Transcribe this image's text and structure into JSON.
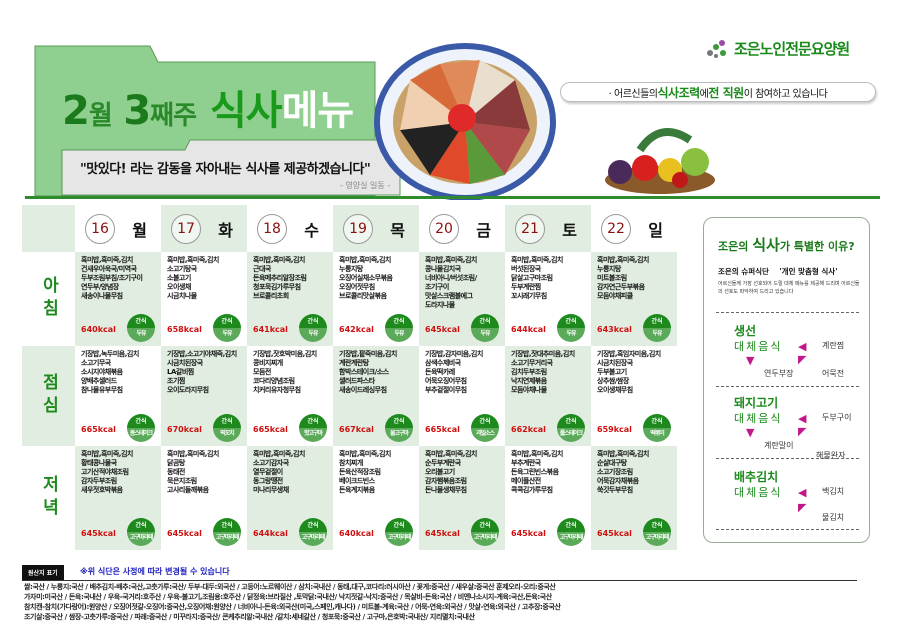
{
  "header": {
    "title_month_num": "2",
    "title_month_unit": "월",
    "title_week_num": "3",
    "title_week_unit": "째주",
    "title_meal": "식사",
    "title_menu": "메뉴",
    "quote": "\"맛있다! 라는 감동을 자아내는 식사를 제공하겠습니다\"",
    "signature": "- 영양실 일동 -",
    "logo_text": "조은노인전문요양원",
    "slogan_pre": "· 어르신들의 ",
    "slogan_b1": "식사조력",
    "slogan_mid": "에 ",
    "slogan_b2": "전 직원",
    "slogan_post": "이 참여하고 있습니다"
  },
  "colors": {
    "accent": "#1e8a1e",
    "light_green": "#e0ede0",
    "kcal": "#d01010",
    "arrow": "#c0188a"
  },
  "days": [
    {
      "date": "16",
      "dow": "월"
    },
    {
      "date": "17",
      "dow": "화"
    },
    {
      "date": "18",
      "dow": "수"
    },
    {
      "date": "19",
      "dow": "목"
    },
    {
      "date": "20",
      "dow": "금"
    },
    {
      "date": "21",
      "dow": "토"
    },
    {
      "date": "22",
      "dow": "일"
    }
  ],
  "meals": [
    {
      "label": "아침",
      "cells": [
        {
          "items": [
            "흑미밥,흑미죽,김치",
            "건새우아욱국/미역국",
            "두부조림부침/조기구이",
            "연두부/양념장",
            "새송이나물무침"
          ],
          "kcal": "640kcal",
          "snack_label": "간식",
          "snack": "두유"
        },
        {
          "items": [
            "흑미밥,흑미죽,김치",
            "소고기탕국",
            "소불고기",
            "오이생채",
            "시금치나물"
          ],
          "kcal": "658kcal",
          "snack_label": "간식",
          "snack": "두유"
        },
        {
          "items": [
            "흑미밥,흑미죽,김치",
            "근대국",
            "돈육메추리알장조림",
            "청포묵김가루무침",
            "브로콜리초회"
          ],
          "kcal": "641kcal",
          "snack_label": "간식",
          "snack": "두유"
        },
        {
          "items": [
            "흑미밥,흑미죽,김치",
            "누룽지탕",
            "오징어실채소무볶음",
            "오징어젓무침",
            "브로콜리맛살볶음"
          ],
          "kcal": "642kcal",
          "snack_label": "간식",
          "snack": "두유"
        },
        {
          "items": [
            "흑미밥,흑미죽,김치",
            "콩나물김치국",
            "너비아니/버섯조림/",
            "조기구이",
            "맛살스크램블에그",
            "도라지나물"
          ],
          "kcal": "645kcal",
          "snack_label": "간식",
          "snack": "두유"
        },
        {
          "items": [
            "흑미밥,흑미죽,김치",
            "버섯된장국",
            "닭살고구마조림",
            "두부계란찜",
            "꼬시래기무침"
          ],
          "kcal": "644kcal",
          "snack_label": "간식",
          "snack": "두유"
        },
        {
          "items": [
            "흑미밥,흑미죽,김치",
            "누룽지탕",
            "미트볼조림",
            "감자연근두부볶음",
            "모듬야채피클"
          ],
          "kcal": "643kcal",
          "snack_label": "간식",
          "snack": "두유"
        }
      ]
    },
    {
      "label": "점심",
      "cells": [
        {
          "items": [
            "기장밥,녹두미음,김치",
            "소고기무국",
            "소시지야채볶음",
            "양배추샐러드",
            "참나물유부무침"
          ],
          "kcal": "665kcal",
          "snack_label": "간식",
          "snack": "콩스테이크"
        },
        {
          "items": [
            "기장밥,소고기야채죽,김치",
            "시금치된장국",
            "LA갈비찜",
            "조기찜",
            "오이도라지무침"
          ],
          "kcal": "670kcal",
          "snack_label": "간식",
          "snack": "떡꼬치"
        },
        {
          "items": [
            "기장밥,잣호박미음,김치",
            "콩비지찌개",
            "모듬전",
            "코다리양념조림",
            "치커리유자청무침"
          ],
          "kcal": "665kcal",
          "snack_label": "간식",
          "snack": "핫고구마"
        },
        {
          "items": [
            "기장밥,팥죽미음,김치",
            "계란계란탕",
            "함박스테이크/소스",
            "샐러드파스타",
            "새송이드레싱무침"
          ],
          "kcal": "667kcal",
          "snack_label": "간식",
          "snack": "물고구마"
        },
        {
          "items": [
            "기장밥,감자미음,김치",
            "삼색수제비국",
            "돈육떡카레",
            "어묵오징어무침",
            "부추겉절이무침"
          ],
          "kcal": "665kcal",
          "snack_label": "간식",
          "snack": "과일소스"
        },
        {
          "items": [
            "기장밥,잣대추미음,김치",
            "소고기무거리국",
            "김치두부조림",
            "낙지연제볶음",
            "모듬야채나물"
          ],
          "kcal": "662kcal",
          "snack_label": "간식",
          "snack": "롤스테이크"
        },
        {
          "items": [
            "기장밥,흑임자미음,김치",
            "시금치된장국",
            "두부불고기",
            "상추쌈/쌈장",
            "오이생채무침"
          ],
          "kcal": "659kcal",
          "snack_label": "간식",
          "snack": "떡볶이"
        }
      ]
    },
    {
      "label": "저녁",
      "cells": [
        {
          "items": [
            "흑미밥,흑미죽,김치",
            "황태콩나물국",
            "고기산적야채조림",
            "감자두부조림",
            "새우젓호박볶음"
          ],
          "kcal": "645kcal",
          "snack_label": "간식",
          "snack": "고구마라떼"
        },
        {
          "items": [
            "흑미밥,흑미죽,김치",
            "닭곰탕",
            "동태전",
            "묵은지조림",
            "고사리들깨볶음"
          ],
          "kcal": "645kcal",
          "snack_label": "간식",
          "snack": "고구마라떼"
        },
        {
          "items": [
            "흑미밥,흑미죽,김치",
            "소고기감자국",
            "열무겉절이",
            "동그랑땡전",
            "미나리무생채"
          ],
          "kcal": "644kcal",
          "snack_label": "간식",
          "snack": "고구마라떼"
        },
        {
          "items": [
            "흑미밥,흑미죽,김치",
            "참치찌개",
            "돈육산적장조림",
            "베이크드빈스",
            "돈육계지볶음"
          ],
          "kcal": "640kcal",
          "snack_label": "간식",
          "snack": "고구마라떼"
        },
        {
          "items": [
            "흑미밥,흑미죽,김치",
            "순두부계란국",
            "오리불고기",
            "감자햄볶음조림",
            "돈나물생채무침"
          ],
          "kcal": "645kcal",
          "snack_label": "간식",
          "snack": "고구마라떼"
        },
        {
          "items": [
            "흑미밥,흑미죽,김치",
            "부추계란국",
            "돈육그린빈스볶음",
            "메이플산전",
            "콕콕김가루무침"
          ],
          "kcal": "645kcal",
          "snack_label": "간식",
          "snack": "고구마라떼"
        },
        {
          "items": [
            "흑미밥,흑미죽,김치",
            "순살대구탕",
            "소고기장조림",
            "어묵감자채볶음",
            "쑥갓두부무침"
          ],
          "kcal": "645kcal",
          "snack_label": "간식",
          "snack": "고구마라떼"
        }
      ]
    }
  ],
  "panel": {
    "title_pre": "조은의 ",
    "title_b": "식사",
    "title_post": "가 특별한 이유?",
    "sub1": "조은의 슈퍼식단",
    "sub2": "'개인 맞춤형 식사'",
    "desc": "어르신들께 가장 선호되어 드릴 대체 메뉴를 제공해 드리며 어르신들의 선호도 파악하여 드리고 있습니다",
    "sections": [
      {
        "head": "생선",
        "alt": "대체음식",
        "options": [
          "계란찜",
          "연두부장",
          "어묵전"
        ]
      },
      {
        "head": "돼지고기",
        "alt": "대체음식",
        "options": [
          "두부구이",
          "계란말이",
          "해물완자"
        ]
      },
      {
        "head": "배추김치",
        "alt": "대체음식",
        "options": [
          "백김치",
          "물김치"
        ]
      }
    ]
  },
  "footer": {
    "label": "원산지 표기",
    "note": "※위 식단은 사정에 따라 변경될 수 있습니다",
    "lines": [
      "쌀:국산 / 누룽지:국산 / 배추김치-배추:국산,고춧가루:국산/ 두부-대두:외국산 / 고등어:노르웨이산 / 삼치:국내산 / 동태,대구,코다리:러시아산 / 꽃게:중국산 / 새우살:중국산 훈제오리-오리:중국산",
      "가자미:미국산 / 돈육:국내산 / 우육-국거리:호주산 / 우육-불고기,조림용:호주산 / 닭정육:브라질산 ,토막닭:국내산/ 낙지젓갈-낙지:중국산 / 목살비-돈육:국산 / 비엔나소시지-계육:국산,돈육:국산",
      "참치캔-참치(가다랑어):원양산 / 오징어젓갈-오징어:중국산,오징어채:원양산 / 너비아니-돈육:외국산(미국,스페인,캐나다) / 미트볼-계육:국산 / 어묵-연육:외국산 / 맛살-연육:외국산 / 고추장:중국산",
      "조기살:중국산 / 쌈장-고춧가루:중국산 / 파래:중국산 / 미꾸라지:중국산/ 콘케추리알:국내산 /갈치:세네갈산 / 청포묵:중국산 / 고구마,은호박:국내산/ 지리멸치:국내산"
    ]
  }
}
